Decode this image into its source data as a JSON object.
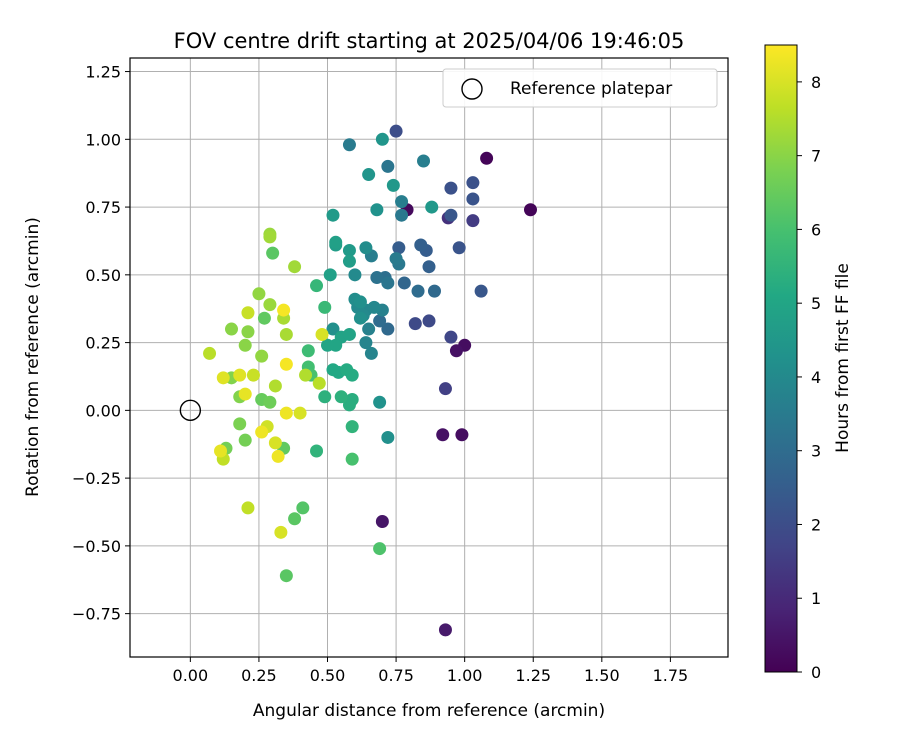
{
  "chart_data": {
    "type": "scatter",
    "title": "FOV centre drift starting at 2025/04/06 19:46:05",
    "xlabel": "Angular distance from reference (arcmin)",
    "ylabel": "Rotation from reference (arcmin)",
    "xlim": [
      -0.22,
      1.96
    ],
    "ylim": [
      -0.91,
      1.3
    ],
    "xticks": [
      0.0,
      0.25,
      0.5,
      0.75,
      1.0,
      1.25,
      1.5,
      1.75
    ],
    "xtick_labels": [
      "0.00",
      "0.25",
      "0.50",
      "0.75",
      "1.00",
      "1.25",
      "1.50",
      "1.75"
    ],
    "yticks": [
      -0.75,
      -0.5,
      -0.25,
      0.0,
      0.25,
      0.5,
      0.75,
      1.0,
      1.25
    ],
    "ytick_labels": [
      "−0.75",
      "−0.50",
      "−0.25",
      "0.00",
      "0.25",
      "0.50",
      "0.75",
      "1.00",
      "1.25"
    ],
    "grid": true,
    "legend": {
      "position": "upper right",
      "label": "Reference platepar"
    },
    "reference_point": {
      "x": 0.0,
      "y": 0.0
    },
    "colorbar": {
      "label": "Hours from first FF file",
      "range": [
        0,
        8.5
      ],
      "ticks": [
        0,
        1,
        2,
        3,
        4,
        5,
        6,
        7,
        8
      ],
      "tick_labels": [
        "0",
        "1",
        "2",
        "3",
        "4",
        "5",
        "6",
        "7",
        "8"
      ],
      "colormap": "viridis"
    },
    "points": [
      {
        "x": 1.08,
        "y": 0.93,
        "h": 0.1
      },
      {
        "x": 1.24,
        "y": 0.74,
        "h": 0.1
      },
      {
        "x": 0.79,
        "y": 0.74,
        "h": 0.2
      },
      {
        "x": 1.0,
        "y": 0.24,
        "h": 0.3
      },
      {
        "x": 0.97,
        "y": 0.22,
        "h": 0.4
      },
      {
        "x": 0.99,
        "y": -0.09,
        "h": 0.3
      },
      {
        "x": 0.92,
        "y": -0.09,
        "h": 0.4
      },
      {
        "x": 0.7,
        "y": -0.41,
        "h": 0.5
      },
      {
        "x": 0.93,
        "y": -0.81,
        "h": 0.6
      },
      {
        "x": 0.94,
        "y": 0.71,
        "h": 1.2
      },
      {
        "x": 1.03,
        "y": 0.7,
        "h": 1.5
      },
      {
        "x": 0.93,
        "y": 0.08,
        "h": 1.6
      },
      {
        "x": 0.95,
        "y": 0.27,
        "h": 1.8
      },
      {
        "x": 0.87,
        "y": 0.33,
        "h": 1.9
      },
      {
        "x": 0.82,
        "y": 0.32,
        "h": 1.9
      },
      {
        "x": 0.75,
        "y": 1.03,
        "h": 2.0
      },
      {
        "x": 1.03,
        "y": 0.84,
        "h": 2.1
      },
      {
        "x": 0.95,
        "y": 0.82,
        "h": 2.1
      },
      {
        "x": 1.03,
        "y": 0.78,
        "h": 2.2
      },
      {
        "x": 0.98,
        "y": 0.6,
        "h": 2.2
      },
      {
        "x": 1.06,
        "y": 0.44,
        "h": 2.3
      },
      {
        "x": 0.95,
        "y": 0.72,
        "h": 2.3
      },
      {
        "x": 0.76,
        "y": 0.6,
        "h": 2.5
      },
      {
        "x": 0.86,
        "y": 0.59,
        "h": 2.5
      },
      {
        "x": 0.84,
        "y": 0.61,
        "h": 2.6
      },
      {
        "x": 0.87,
        "y": 0.53,
        "h": 2.6
      },
      {
        "x": 0.78,
        "y": 0.47,
        "h": 2.8
      },
      {
        "x": 0.89,
        "y": 0.44,
        "h": 2.9
      },
      {
        "x": 0.83,
        "y": 0.44,
        "h": 3.0
      },
      {
        "x": 0.72,
        "y": 0.3,
        "h": 2.9
      },
      {
        "x": 0.69,
        "y": 0.33,
        "h": 3.0
      },
      {
        "x": 0.71,
        "y": 0.49,
        "h": 3.1
      },
      {
        "x": 0.68,
        "y": 0.49,
        "h": 3.2
      },
      {
        "x": 0.72,
        "y": 0.47,
        "h": 3.3
      },
      {
        "x": 0.76,
        "y": 0.54,
        "h": 3.4
      },
      {
        "x": 0.77,
        "y": 0.72,
        "h": 3.4
      },
      {
        "x": 0.72,
        "y": 0.9,
        "h": 3.3
      },
      {
        "x": 0.75,
        "y": 0.56,
        "h": 3.5
      },
      {
        "x": 0.58,
        "y": 0.98,
        "h": 3.5
      },
      {
        "x": 0.85,
        "y": 0.92,
        "h": 3.6
      },
      {
        "x": 0.77,
        "y": 0.77,
        "h": 3.6
      },
      {
        "x": 0.66,
        "y": 0.57,
        "h": 3.6
      },
      {
        "x": 0.65,
        "y": 0.3,
        "h": 3.7
      },
      {
        "x": 0.7,
        "y": 0.37,
        "h": 3.7
      },
      {
        "x": 0.66,
        "y": 0.21,
        "h": 3.8
      },
      {
        "x": 0.64,
        "y": 0.25,
        "h": 3.8
      },
      {
        "x": 0.64,
        "y": 0.37,
        "h": 3.9
      },
      {
        "x": 0.67,
        "y": 0.38,
        "h": 3.9
      },
      {
        "x": 0.61,
        "y": 0.38,
        "h": 4.0
      },
      {
        "x": 0.63,
        "y": 0.35,
        "h": 4.0
      },
      {
        "x": 0.6,
        "y": 0.5,
        "h": 4.0
      },
      {
        "x": 0.6,
        "y": 0.41,
        "h": 4.1
      },
      {
        "x": 0.64,
        "y": 0.6,
        "h": 4.1
      },
      {
        "x": 0.62,
        "y": 0.4,
        "h": 4.2
      },
      {
        "x": 0.62,
        "y": 0.34,
        "h": 4.2
      },
      {
        "x": 0.68,
        "y": 0.74,
        "h": 4.3
      },
      {
        "x": 0.52,
        "y": 0.3,
        "h": 4.2
      },
      {
        "x": 0.72,
        "y": -0.1,
        "h": 4.2
      },
      {
        "x": 0.69,
        "y": 0.03,
        "h": 4.3
      },
      {
        "x": 0.7,
        "y": 1.0,
        "h": 4.4
      },
      {
        "x": 0.65,
        "y": 0.87,
        "h": 4.4
      },
      {
        "x": 0.74,
        "y": 0.83,
        "h": 4.5
      },
      {
        "x": 0.88,
        "y": 0.75,
        "h": 4.5
      },
      {
        "x": 0.52,
        "y": 0.72,
        "h": 4.6
      },
      {
        "x": 0.58,
        "y": 0.59,
        "h": 4.6
      },
      {
        "x": 0.58,
        "y": 0.55,
        "h": 4.7
      },
      {
        "x": 0.53,
        "y": 0.61,
        "h": 4.7
      },
      {
        "x": 0.53,
        "y": 0.62,
        "h": 4.8
      },
      {
        "x": 0.51,
        "y": 0.5,
        "h": 4.8
      },
      {
        "x": 0.55,
        "y": 0.27,
        "h": 4.9
      },
      {
        "x": 0.58,
        "y": 0.28,
        "h": 4.9
      },
      {
        "x": 0.53,
        "y": 0.24,
        "h": 5.0
      },
      {
        "x": 0.5,
        "y": 0.24,
        "h": 5.0
      },
      {
        "x": 0.52,
        "y": 0.15,
        "h": 5.1
      },
      {
        "x": 0.54,
        "y": 0.14,
        "h": 5.1
      },
      {
        "x": 0.59,
        "y": 0.13,
        "h": 5.2
      },
      {
        "x": 0.57,
        "y": 0.15,
        "h": 5.2
      },
      {
        "x": 0.58,
        "y": 0.02,
        "h": 5.3
      },
      {
        "x": 0.59,
        "y": 0.04,
        "h": 5.3
      },
      {
        "x": 0.55,
        "y": 0.05,
        "h": 5.4
      },
      {
        "x": 0.49,
        "y": 0.05,
        "h": 5.4
      },
      {
        "x": 0.59,
        "y": -0.06,
        "h": 5.5
      },
      {
        "x": 0.46,
        "y": -0.15,
        "h": 5.5
      },
      {
        "x": 0.46,
        "y": 0.46,
        "h": 5.6
      },
      {
        "x": 0.49,
        "y": 0.38,
        "h": 5.7
      },
      {
        "x": 0.43,
        "y": 0.22,
        "h": 5.8
      },
      {
        "x": 0.43,
        "y": 0.16,
        "h": 5.9
      },
      {
        "x": 0.44,
        "y": 0.13,
        "h": 6.0
      },
      {
        "x": 0.59,
        "y": -0.18,
        "h": 6.0
      },
      {
        "x": 0.69,
        "y": -0.51,
        "h": 6.1
      },
      {
        "x": 0.41,
        "y": -0.36,
        "h": 6.2
      },
      {
        "x": 0.38,
        "y": -0.4,
        "h": 6.3
      },
      {
        "x": 0.35,
        "y": -0.61,
        "h": 6.3
      },
      {
        "x": 0.34,
        "y": -0.14,
        "h": 6.4
      },
      {
        "x": 0.3,
        "y": 0.58,
        "h": 6.3
      },
      {
        "x": 0.27,
        "y": 0.34,
        "h": 6.4
      },
      {
        "x": 0.26,
        "y": 0.04,
        "h": 6.5
      },
      {
        "x": 0.29,
        "y": 0.03,
        "h": 6.6
      },
      {
        "x": 0.2,
        "y": -0.11,
        "h": 6.7
      },
      {
        "x": 0.13,
        "y": -0.14,
        "h": 6.7
      },
      {
        "x": 0.18,
        "y": -0.05,
        "h": 6.8
      },
      {
        "x": 0.15,
        "y": 0.12,
        "h": 6.9
      },
      {
        "x": 0.18,
        "y": 0.05,
        "h": 6.9
      },
      {
        "x": 0.2,
        "y": 0.24,
        "h": 7.0
      },
      {
        "x": 0.21,
        "y": 0.29,
        "h": 7.0
      },
      {
        "x": 0.15,
        "y": 0.3,
        "h": 7.0
      },
      {
        "x": 0.26,
        "y": 0.2,
        "h": 7.1
      },
      {
        "x": 0.25,
        "y": 0.43,
        "h": 7.1
      },
      {
        "x": 0.29,
        "y": 0.39,
        "h": 7.2
      },
      {
        "x": 0.29,
        "y": 0.65,
        "h": 7.2
      },
      {
        "x": 0.29,
        "y": 0.64,
        "h": 7.3
      },
      {
        "x": 0.38,
        "y": 0.53,
        "h": 7.3
      },
      {
        "x": 0.34,
        "y": 0.34,
        "h": 7.4
      },
      {
        "x": 0.35,
        "y": 0.28,
        "h": 7.4
      },
      {
        "x": 0.31,
        "y": 0.09,
        "h": 7.5
      },
      {
        "x": 0.42,
        "y": 0.13,
        "h": 7.5
      },
      {
        "x": 0.47,
        "y": 0.1,
        "h": 7.6
      },
      {
        "x": 0.07,
        "y": 0.21,
        "h": 7.6
      },
      {
        "x": 0.12,
        "y": -0.18,
        "h": 7.7
      },
      {
        "x": 0.21,
        "y": -0.36,
        "h": 7.7
      },
      {
        "x": 0.21,
        "y": 0.36,
        "h": 7.8
      },
      {
        "x": 0.23,
        "y": 0.13,
        "h": 7.8
      },
      {
        "x": 0.28,
        "y": -0.06,
        "h": 7.9
      },
      {
        "x": 0.33,
        "y": -0.45,
        "h": 8.0
      },
      {
        "x": 0.4,
        "y": -0.01,
        "h": 8.0
      },
      {
        "x": 0.31,
        "y": -0.12,
        "h": 8.0
      },
      {
        "x": 0.48,
        "y": 0.28,
        "h": 8.0
      },
      {
        "x": 0.18,
        "y": 0.13,
        "h": 8.1
      },
      {
        "x": 0.12,
        "y": 0.12,
        "h": 8.1
      },
      {
        "x": 0.2,
        "y": 0.06,
        "h": 8.2
      },
      {
        "x": 0.11,
        "y": -0.15,
        "h": 8.2
      },
      {
        "x": 0.26,
        "y": -0.08,
        "h": 8.3
      },
      {
        "x": 0.32,
        "y": -0.17,
        "h": 8.3
      },
      {
        "x": 0.35,
        "y": -0.01,
        "h": 8.3
      },
      {
        "x": 0.35,
        "y": 0.17,
        "h": 8.4
      },
      {
        "x": 0.34,
        "y": 0.37,
        "h": 8.4
      }
    ]
  }
}
